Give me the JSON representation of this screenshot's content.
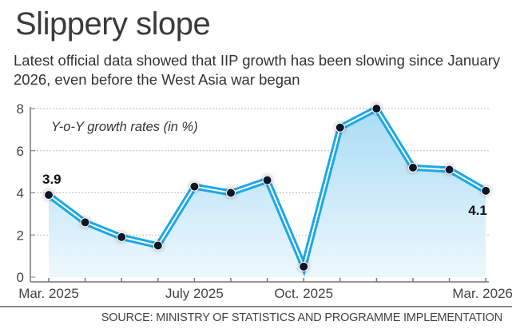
{
  "header": {
    "title": "Slippery slope",
    "subtitle": "Latest official data showed that IIP growth has been slowing since January 2026, even before the West Asia war began"
  },
  "source": "SOURCE: MINISTRY OF STATISTICS AND PROGRAMME IMPLEMENTATION",
  "colors": {
    "line": "#1ba8e6",
    "line_inner": "#ffffff",
    "fill_top": "#a9dcf5",
    "fill_bottom": "#eef8fd",
    "point": "#111827",
    "grid": "#bbbbbb",
    "axis": "#777777"
  },
  "chart_data": {
    "type": "area",
    "title": "Slippery slope",
    "annotation": "Y-o-Y growth rates (in %)",
    "xlabel": "",
    "ylabel": "Y-o-Y growth rates (in %)",
    "x": [
      "Mar. 2025",
      "Apr. 2025",
      "May 2025",
      "Jun. 2025",
      "July 2025",
      "Aug. 2025",
      "Sep. 2025",
      "Oct. 2025",
      "Nov. 2025",
      "Dec. 2025",
      "Jan. 2026",
      "Feb. 2026",
      "Mar. 2026"
    ],
    "x_tick_labels": [
      {
        "index": 0,
        "label": "Mar. 2025"
      },
      {
        "index": 4,
        "label": "July 2025"
      },
      {
        "index": 7,
        "label": "Oct. 2025"
      },
      {
        "index": 12,
        "label": "Mar. 2026"
      }
    ],
    "series": [
      {
        "name": "IIP growth",
        "values": [
          3.9,
          2.6,
          1.9,
          1.5,
          4.3,
          4.0,
          4.6,
          0.5,
          7.1,
          8.0,
          5.2,
          5.1,
          4.1
        ]
      }
    ],
    "data_labels": [
      {
        "index": 0,
        "text": "3.9",
        "position": "above"
      },
      {
        "index": 12,
        "text": "4.1",
        "position": "below"
      }
    ],
    "ylim": [
      0,
      8
    ],
    "y_ticks": [
      0,
      2,
      4,
      6,
      8
    ],
    "grid": true,
    "legend": "none"
  }
}
